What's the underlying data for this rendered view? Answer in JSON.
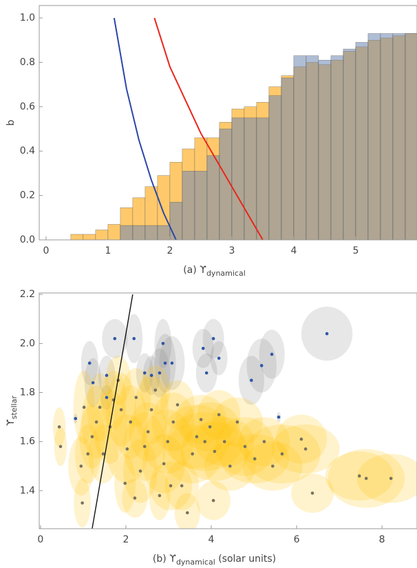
{
  "chart_data": [
    {
      "type": "histogram",
      "ylabel": "b",
      "xlabel": {
        "text": "(a) ϒ",
        "subscript": "dynamical"
      },
      "xlim": [
        -0.11,
        5.99
      ],
      "ylim": [
        0,
        1.056
      ],
      "xticks": [
        0,
        1,
        2,
        3,
        4,
        5
      ],
      "yticks": [
        {
          "value": 0,
          "label": "0.0"
        },
        0.2,
        0.4,
        0.6,
        0.8,
        {
          "value": 1,
          "label": "1.0"
        }
      ],
      "bins": [
        0.4,
        0.6,
        0.8,
        1.0,
        1.2,
        1.4,
        1.6,
        1.8,
        2.0,
        2.2,
        2.4,
        2.6,
        2.8,
        3.0,
        3.2,
        3.4,
        3.6,
        3.8,
        4.0,
        4.2,
        4.4,
        4.6,
        4.8,
        5.0,
        5.2,
        5.4,
        5.6,
        5.8,
        6.0
      ],
      "series": [
        {
          "color": "#ffc96b",
          "values": [
            0.025,
            0.025,
            0.045,
            0.07,
            0.145,
            0.19,
            0.24,
            0.29,
            0.35,
            0.41,
            0.46,
            0.46,
            0.53,
            0.59,
            0.6,
            0.62,
            0.69,
            0.74,
            0.78,
            0.8,
            0.79,
            0.81,
            0.85,
            0.87,
            0.9,
            0.91,
            0.92,
            0.93
          ]
        },
        {
          "color": "#6d86b3",
          "values": [
            0,
            0,
            0,
            0,
            0.065,
            0.065,
            0.065,
            0.065,
            0.17,
            0.31,
            0.31,
            0.38,
            0.5,
            0.55,
            0.55,
            0.55,
            0.65,
            0.73,
            0.83,
            0.83,
            0.81,
            0.83,
            0.86,
            0.89,
            0.93,
            0.93,
            0.93,
            0.93
          ]
        }
      ],
      "curves": [
        {
          "color": "#2a46a8",
          "x": [
            1.1,
            1.3,
            1.5,
            1.7,
            1.9,
            2.1
          ],
          "y": [
            1.0,
            0.68,
            0.45,
            0.27,
            0.12,
            0.0
          ]
        },
        {
          "color": "#e8261c",
          "x": [
            1.75,
            2.0,
            2.5,
            3.0,
            3.5
          ],
          "y": [
            1.0,
            0.78,
            0.48,
            0.24,
            0.0
          ]
        }
      ]
    },
    {
      "type": "ellipse-scatter",
      "ylabel": {
        "text": "ϒ",
        "subscript": "stellar"
      },
      "xlabel": {
        "text": "(b) ϒ",
        "subscript": "dynamical",
        "suffix": " (solar units)"
      },
      "xlim": [
        -0.03,
        8.82
      ],
      "ylim": [
        1.245,
        2.206
      ],
      "xticks": [
        0,
        2,
        4,
        6,
        8
      ],
      "yticks": [
        1.4,
        1.6,
        1.8,
        {
          "value": 2,
          "label": "2.0"
        },
        2.2
      ],
      "line": {
        "color": "#111111",
        "x": [
          1.21,
          2.16
        ],
        "y": [
          1.245,
          2.2
        ]
      },
      "series": [
        {
          "color": "#ffc107",
          "point_color": "#77725f",
          "x": [
            0.44,
            0.47,
            0.95,
            0.98,
            1.02,
            1.11,
            1.21,
            1.31,
            1.39,
            1.47,
            1.63,
            1.71,
            1.82,
            1.89,
            1.98,
            2.03,
            2.11,
            2.24,
            2.34,
            2.44,
            2.52,
            2.6,
            2.69,
            2.79,
            2.89,
            2.98,
            3.11,
            3.21,
            3.31,
            3.44,
            3.56,
            3.66,
            3.76,
            3.85,
            3.97,
            4.08,
            4.18,
            4.31,
            4.44,
            4.61,
            4.79,
            5.02,
            5.24,
            5.44,
            5.66,
            6.11,
            6.21,
            6.37,
            7.47,
            7.63,
            8.21,
            4.05,
            3.05,
            2.21
          ],
          "y": [
            1.66,
            1.58,
            1.5,
            1.35,
            1.74,
            1.55,
            1.62,
            1.68,
            1.74,
            1.55,
            1.66,
            1.77,
            1.85,
            1.73,
            1.43,
            1.57,
            1.68,
            1.78,
            1.48,
            1.58,
            1.64,
            1.73,
            1.81,
            1.38,
            1.51,
            1.6,
            1.68,
            1.75,
            1.42,
            1.31,
            1.55,
            1.62,
            1.69,
            1.6,
            1.66,
            1.56,
            1.71,
            1.6,
            1.5,
            1.68,
            1.58,
            1.53,
            1.6,
            1.5,
            1.55,
            1.61,
            1.57,
            1.39,
            1.46,
            1.45,
            1.45,
            1.36,
            1.42,
            1.37
          ],
          "xerr": [
            0.15,
            0.15,
            0.3,
            0.2,
            0.25,
            0.3,
            0.3,
            0.35,
            0.3,
            0.35,
            0.4,
            0.3,
            0.3,
            0.35,
            0.25,
            0.5,
            0.4,
            0.35,
            0.4,
            0.5,
            0.45,
            0.4,
            0.35,
            0.25,
            0.5,
            0.6,
            0.5,
            0.4,
            0.4,
            0.3,
            0.7,
            0.8,
            0.6,
            0.9,
            0.7,
            0.8,
            0.5,
            0.7,
            0.6,
            0.6,
            0.7,
            0.8,
            0.6,
            0.7,
            0.9,
            0.6,
            0.8,
            0.5,
            0.8,
            0.9,
            0.8,
            0.4,
            0.5,
            0.3
          ],
          "yerr": [
            0.08,
            0.08,
            0.12,
            0.1,
            0.15,
            0.12,
            0.13,
            0.15,
            0.14,
            0.12,
            0.15,
            0.12,
            0.1,
            0.15,
            0.12,
            0.14,
            0.15,
            0.12,
            0.13,
            0.14,
            0.12,
            0.14,
            0.1,
            0.1,
            0.12,
            0.13,
            0.12,
            0.1,
            0.1,
            0.08,
            0.12,
            0.13,
            0.1,
            0.12,
            0.1,
            0.12,
            0.1,
            0.1,
            0.1,
            0.1,
            0.12,
            0.1,
            0.1,
            0.1,
            0.12,
            0.1,
            0.1,
            0.08,
            0.1,
            0.12,
            0.1,
            0.08,
            0.1,
            0.08
          ]
        },
        {
          "color": "#888888",
          "point_color": "#2f56a6",
          "x": [
            0.82,
            6.71,
            5.42,
            5.18,
            4.94,
            5.58,
            4.05,
            4.18,
            3.81,
            3.89,
            2.87,
            2.92,
            3.08,
            2.79,
            2.6,
            1.74,
            2.19,
            1.15,
            1.55,
            1.55,
            1.23,
            2.44
          ],
          "y": [
            1.694,
            2.04,
            1.956,
            1.91,
            1.85,
            1.7,
            2.02,
            1.94,
            1.98,
            1.88,
            2.0,
            1.92,
            1.92,
            1.88,
            1.87,
            2.02,
            2.02,
            1.92,
            1.87,
            1.78,
            1.84,
            1.88
          ],
          "xerr": [
            0.05,
            0.6,
            0.3,
            0.35,
            0.3,
            0.05,
            0.25,
            0.2,
            0.25,
            0.25,
            0.2,
            0.25,
            0.3,
            0.25,
            0.2,
            0.3,
            0.2,
            0.2,
            0.2,
            0.15,
            0.2,
            0.2
          ],
          "yerr": [
            0.02,
            0.11,
            0.1,
            0.11,
            0.1,
            0.02,
            0.08,
            0.07,
            0.08,
            0.08,
            0.1,
            0.12,
            0.11,
            0.1,
            0.08,
            0.08,
            0.1,
            0.09,
            0.08,
            0.05,
            0.1,
            0.08
          ]
        }
      ]
    }
  ]
}
